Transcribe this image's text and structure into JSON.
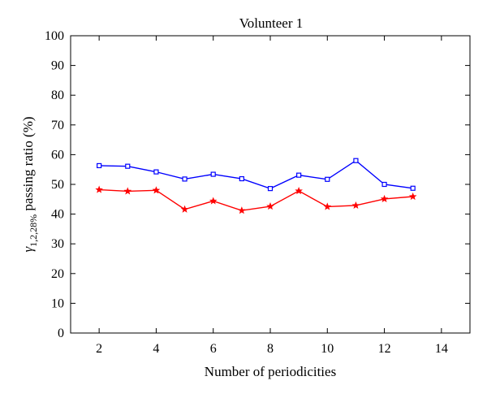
{
  "chart_data": {
    "type": "line",
    "title": "Volunteer 1",
    "xlabel": "Number of periodicities",
    "ylabel": {
      "symbol": "γ",
      "subscript": "1,2,28%",
      "rest": " passing ratio (%)"
    },
    "xlim": [
      1,
      15
    ],
    "ylim": [
      0,
      100
    ],
    "xticks": [
      2,
      4,
      6,
      8,
      10,
      12,
      14
    ],
    "yticks": [
      0,
      10,
      20,
      30,
      40,
      50,
      60,
      70,
      80,
      90,
      100
    ],
    "grid": false,
    "x": [
      2,
      3,
      4,
      5,
      6,
      7,
      8,
      9,
      10,
      11,
      12,
      13
    ],
    "series": [
      {
        "color": "#0000ff",
        "marker": "square",
        "values": [
          56.3,
          56.1,
          54.2,
          51.8,
          53.4,
          51.9,
          48.6,
          53.1,
          51.7,
          58.0,
          50.0,
          48.7
        ]
      },
      {
        "color": "#ff0000",
        "marker": "star",
        "values": [
          48.2,
          47.7,
          48.0,
          41.6,
          44.4,
          41.2,
          42.6,
          47.8,
          42.5,
          42.9,
          45.1,
          45.9
        ]
      }
    ]
  }
}
